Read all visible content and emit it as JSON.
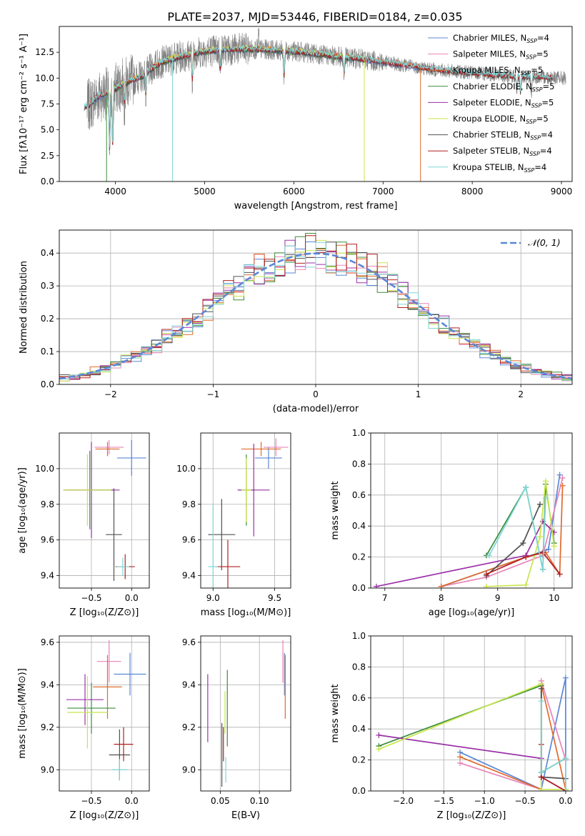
{
  "figure": {
    "title": "PLATE=2037, MJD=53446, FIBERID=0184, z=0.035"
  },
  "colors": {
    "Chabrier MILES": "#5b87d6",
    "Salpeter MILES": "#e784b7",
    "Kroupa MILES": "#e06a2c",
    "Chabrier ELODIE": "#3c8c3c",
    "Salpeter ELODIE": "#9b31a8",
    "Kroupa ELODIE": "#c8e64a",
    "Chabrier STELIB": "#505050",
    "Salpeter STELIB": "#b02020",
    "Kroupa STELIB": "#7fd6d6",
    "data": "#808080",
    "gauss": "#5b87d6",
    "grid": "#b0b0b0"
  },
  "chart_data": [
    {
      "id": "spectrum",
      "type": "line",
      "title": "PLATE=2037, MJD=53446, FIBERID=0184, z=0.035",
      "xlabel": "wavelength [Angstrom, rest frame]",
      "ylabel": "Flux [fλ10⁻¹⁷ erg cm⁻² s⁻¹ A⁻¹]",
      "xlim": [
        3370,
        9120
      ],
      "ylim": [
        0,
        15
      ],
      "xticks": [
        "4000",
        "5000",
        "6000",
        "7000",
        "8000",
        "9000"
      ],
      "yticks": [
        "0.0",
        "2.5",
        "5.0",
        "7.5",
        "10.0",
        "12.5"
      ],
      "grid": false,
      "legend_position": "top-right",
      "legend": [
        {
          "base": "Chabrier MILES, N",
          "sub": "SSP",
          "tail": "=4"
        },
        {
          "base": "Salpeter MILES, N",
          "sub": "SSP",
          "tail": "=5"
        },
        {
          "base": "Kroupa MILES, N",
          "sub": "SSP",
          "tail": "=5"
        },
        {
          "base": "Chabrier ELODIE, N",
          "sub": "SSP",
          "tail": "=5"
        },
        {
          "base": "Salpeter ELODIE, N",
          "sub": "SSP",
          "tail": "=5"
        },
        {
          "base": "Kroupa ELODIE, N",
          "sub": "SSP",
          "tail": "=5"
        },
        {
          "base": "Chabrier STELIB, N",
          "sub": "SSP",
          "tail": "=4"
        },
        {
          "base": "Salpeter STELIB, N",
          "sub": "SSP",
          "tail": "=4"
        },
        {
          "base": "Kroupa STELIB, N",
          "sub": "SSP",
          "tail": "=4"
        }
      ],
      "continuum": [
        [
          3680,
          7.2
        ],
        [
          3800,
          8.2
        ],
        [
          3950,
          8.7
        ],
        [
          4100,
          9.5
        ],
        [
          4300,
          10.2
        ],
        [
          4500,
          11.5
        ],
        [
          4700,
          12.0
        ],
        [
          5000,
          12.6
        ],
        [
          5300,
          12.8
        ],
        [
          5600,
          12.8
        ],
        [
          6000,
          12.6
        ],
        [
          6400,
          12.2
        ],
        [
          6800,
          11.8
        ],
        [
          7200,
          11.3
        ],
        [
          7600,
          10.8
        ],
        [
          8000,
          10.5
        ],
        [
          8400,
          10.2
        ],
        [
          8800,
          10.1
        ],
        [
          9050,
          10.0
        ]
      ],
      "data_range": [
        3680,
        9050
      ],
      "model_ranges": {
        "MILES": [
          3700,
          7420
        ],
        "ELODIE": [
          3900,
          6800
        ],
        "STELIB": [
          3650,
          8900
        ]
      }
    },
    {
      "id": "residuals",
      "type": "area",
      "xlabel": "(data-model)/error",
      "ylabel": "Normed distribution",
      "xlim": [
        -2.5,
        2.5
      ],
      "ylim": [
        0,
        0.47
      ],
      "xticks": [
        "-2",
        "-1",
        "0",
        "1",
        "2"
      ],
      "yticks": [
        "0.0",
        "0.1",
        "0.2",
        "0.3",
        "0.4"
      ],
      "grid": true,
      "legend_position": "top-right",
      "legend": "𝒩(0, 1)",
      "bin_width": 0.1,
      "distribution": "normal(0,1) step histograms, one per model"
    },
    {
      "id": "age-vs-Z",
      "type": "scatter",
      "xlabel": "Z [log₁₀(Z/Z⊙)]",
      "ylabel": "age  [log₁₀(age/yr)]",
      "xlim": [
        -0.9,
        0.22
      ],
      "ylim": [
        9.33,
        10.2
      ],
      "xticks": [
        "-0.5",
        "0.0"
      ],
      "yticks": [
        "9.4",
        "9.6",
        "9.8",
        "10.0"
      ],
      "grid": true,
      "points": [
        {
          "model": "Chabrier MILES",
          "x": 0.0,
          "xerr": 0.18,
          "y": 10.06,
          "yerr": 0.1
        },
        {
          "model": "Salpeter MILES",
          "x": -0.28,
          "xerr": 0.18,
          "y": 10.12,
          "yerr": 0.04
        },
        {
          "model": "Kroupa MILES",
          "x": -0.3,
          "xerr": 0.15,
          "y": 10.11,
          "yerr": 0.04
        },
        {
          "model": "Chabrier ELODIE",
          "x": -0.52,
          "xerr": 0.3,
          "y": 9.88,
          "yerr": 0.22
        },
        {
          "model": "Salpeter ELODIE",
          "x": -0.5,
          "xerr": 0.35,
          "y": 9.88,
          "yerr": 0.27
        },
        {
          "model": "Kroupa ELODIE",
          "x": -0.55,
          "xerr": 0.3,
          "y": 9.88,
          "yerr": 0.2
        },
        {
          "model": "Chabrier STELIB",
          "x": -0.22,
          "xerr": 0.1,
          "y": 9.63,
          "yerr": 0.26
        },
        {
          "model": "Salpeter STELIB",
          "x": -0.08,
          "xerr": 0.12,
          "y": 9.45,
          "yerr": 0.07
        },
        {
          "model": "Kroupa STELIB",
          "x": -0.11,
          "xerr": 0.08,
          "y": 9.45,
          "yerr": 0.05
        }
      ]
    },
    {
      "id": "age-vs-mass",
      "type": "scatter",
      "xlabel": "mass [log₁₀(M/M⊙)]",
      "ylabel": "",
      "xlim": [
        8.9,
        9.63
      ],
      "ylim": [
        9.33,
        10.2
      ],
      "xticks": [
        "9.0",
        "9.5"
      ],
      "yticks": [
        "9.4",
        "9.6",
        "9.8",
        "10.0"
      ],
      "grid": true,
      "points": [
        {
          "model": "Chabrier MILES",
          "x": 9.45,
          "xerr": 0.11,
          "y": 10.06,
          "yerr": 0.06
        },
        {
          "model": "Salpeter MILES",
          "x": 9.51,
          "xerr": 0.1,
          "y": 10.12,
          "yerr": 0.05
        },
        {
          "model": "Kroupa MILES",
          "x": 9.39,
          "xerr": 0.16,
          "y": 10.11,
          "yerr": 0.04
        },
        {
          "model": "Chabrier ELODIE",
          "x": 9.27,
          "xerr": 0.07,
          "y": 9.88,
          "yerr": 0.2
        },
        {
          "model": "Salpeter ELODIE",
          "x": 9.33,
          "xerr": 0.13,
          "y": 9.88,
          "yerr": 0.26
        },
        {
          "model": "Kroupa ELODIE",
          "x": 9.27,
          "xerr": 0.04,
          "y": 9.88,
          "yerr": 0.18
        },
        {
          "model": "Chabrier STELIB",
          "x": 9.07,
          "xerr": 0.11,
          "y": 9.63,
          "yerr": 0.2
        },
        {
          "model": "Salpeter STELIB",
          "x": 9.12,
          "xerr": 0.1,
          "y": 9.45,
          "yerr": 0.15
        },
        {
          "model": "Kroupa STELIB",
          "x": 9.0,
          "xerr": 0.04,
          "y": 9.45,
          "yerr": 0.35
        }
      ]
    },
    {
      "id": "weight-vs-age",
      "type": "line",
      "xlabel": "age  [log₁₀(age/yr)]",
      "ylabel": "mass weight",
      "xlim": [
        6.75,
        10.32
      ],
      "ylim": [
        0,
        1.0
      ],
      "xticks": [
        "7",
        "8",
        "9",
        "10"
      ],
      "yticks": [
        "0.0",
        "0.2",
        "0.4",
        "0.6",
        "0.8",
        "1.0"
      ],
      "grid": true,
      "series": [
        {
          "model": "Chabrier MILES",
          "x": [
            8.0,
            9.9,
            10.1
          ],
          "y": [
            0.01,
            0.25,
            0.73
          ]
        },
        {
          "model": "Salpeter MILES",
          "x": [
            8.0,
            8.8,
            9.8,
            10.15
          ],
          "y": [
            0.01,
            0.07,
            0.21,
            0.71
          ]
        },
        {
          "model": "Kroupa MILES",
          "x": [
            8.0,
            9.5,
            9.85,
            10.1,
            10.15
          ],
          "y": [
            0.01,
            0.2,
            0.23,
            0.09,
            0.66
          ]
        },
        {
          "model": "Chabrier ELODIE",
          "x": [
            8.8,
            9.5,
            9.8,
            9.85,
            10.0
          ],
          "y": [
            0.21,
            0.65,
            0.12,
            0.67,
            0.29
          ]
        },
        {
          "model": "Salpeter ELODIE",
          "x": [
            6.85,
            9.5,
            9.8,
            10.0
          ],
          "y": [
            0.01,
            0.21,
            0.43,
            0.36
          ]
        },
        {
          "model": "Kroupa ELODIE",
          "x": [
            8.8,
            9.5,
            9.75,
            9.85,
            10.0
          ],
          "y": [
            0.01,
            0.02,
            0.33,
            0.69,
            0.27
          ]
        },
        {
          "model": "Chabrier STELIB",
          "x": [
            8.8,
            9.45,
            9.75
          ],
          "y": [
            0.08,
            0.29,
            0.54
          ]
        },
        {
          "model": "Salpeter STELIB",
          "x": [
            8.8,
            9.5,
            9.8,
            10.1
          ],
          "y": [
            0.09,
            0.2,
            0.23,
            0.09
          ]
        },
        {
          "model": "Kroupa STELIB",
          "x": [
            8.85,
            9.5,
            9.8,
            9.85
          ],
          "y": [
            0.21,
            0.65,
            0.12,
            0.58
          ]
        }
      ]
    },
    {
      "id": "mass-vs-Z",
      "type": "scatter",
      "xlabel": "Z [log₁₀(Z/Z⊙)]",
      "ylabel": "mass [log₁₀(M/M⊙)]",
      "xlim": [
        -0.9,
        0.22
      ],
      "ylim": [
        8.9,
        9.63
      ],
      "xticks": [
        "-0.5",
        "0.0"
      ],
      "yticks": [
        "9.0",
        "9.2",
        "9.4",
        "9.6"
      ],
      "grid": true,
      "points": [
        {
          "model": "Chabrier MILES",
          "x": -0.02,
          "xerr": 0.2,
          "y": 9.45,
          "yerr": 0.1
        },
        {
          "model": "Salpeter MILES",
          "x": -0.28,
          "xerr": 0.15,
          "y": 9.51,
          "yerr": 0.1
        },
        {
          "model": "Kroupa MILES",
          "x": -0.3,
          "xerr": 0.18,
          "y": 9.39,
          "yerr": 0.15
        },
        {
          "model": "Chabrier ELODIE",
          "x": -0.5,
          "xerr": 0.3,
          "y": 9.29,
          "yerr": 0.12
        },
        {
          "model": "Salpeter ELODIE",
          "x": -0.58,
          "xerr": 0.23,
          "y": 9.33,
          "yerr": 0.12
        },
        {
          "model": "Kroupa ELODIE",
          "x": -0.55,
          "xerr": 0.25,
          "y": 9.27,
          "yerr": 0.17
        },
        {
          "model": "Chabrier STELIB",
          "x": -0.15,
          "xerr": 0.13,
          "y": 9.07,
          "yerr": 0.12
        },
        {
          "model": "Salpeter STELIB",
          "x": -0.1,
          "xerr": 0.12,
          "y": 9.12,
          "yerr": 0.08
        },
        {
          "model": "Kroupa STELIB",
          "x": -0.15,
          "xerr": 0.1,
          "y": 9.0,
          "yerr": 0.05
        }
      ]
    },
    {
      "id": "mass-vs-EBV",
      "type": "scatter",
      "xlabel": "E(B-V)",
      "ylabel": "",
      "xlim": [
        0.025,
        0.14
      ],
      "ylim": [
        8.9,
        9.63
      ],
      "xticks": [
        "0.05",
        "0.10"
      ],
      "yticks": [
        "9.0",
        "9.2",
        "9.4",
        "9.6"
      ],
      "grid": true,
      "points": [
        {
          "model": "Chabrier MILES",
          "x": 0.132,
          "xerr": 0.0,
          "y": 9.45,
          "yerr": 0.1
        },
        {
          "model": "Salpeter MILES",
          "x": 0.13,
          "xerr": 0.0,
          "y": 9.51,
          "yerr": 0.1
        },
        {
          "model": "Kroupa MILES",
          "x": 0.133,
          "xerr": 0.0,
          "y": 9.39,
          "yerr": 0.15
        },
        {
          "model": "Chabrier ELODIE",
          "x": 0.059,
          "xerr": 0.0,
          "y": 9.29,
          "yerr": 0.18
        },
        {
          "model": "Salpeter ELODIE",
          "x": 0.034,
          "xerr": 0.0,
          "y": 9.29,
          "yerr": 0.16
        },
        {
          "model": "Kroupa ELODIE",
          "x": 0.056,
          "xerr": 0.0,
          "y": 9.27,
          "yerr": 0.1
        },
        {
          "model": "Chabrier STELIB",
          "x": 0.052,
          "xerr": 0.0,
          "y": 9.07,
          "yerr": 0.15
        },
        {
          "model": "Salpeter STELIB",
          "x": 0.054,
          "xerr": 0.0,
          "y": 9.12,
          "yerr": 0.08
        },
        {
          "model": "Kroupa STELIB",
          "x": 0.057,
          "xerr": 0.0,
          "y": 9.0,
          "yerr": 0.06
        }
      ]
    },
    {
      "id": "weight-vs-Z",
      "type": "line",
      "xlabel": "Z [log₁₀(Z/Z⊙)]",
      "ylabel": "mass weight",
      "xlim": [
        -2.4,
        0.08
      ],
      "ylim": [
        0,
        1.0
      ],
      "xticks": [
        "-2.0",
        "-1.5",
        "-1.0",
        "-0.5",
        "0.0"
      ],
      "yticks": [
        "0.0",
        "0.2",
        "0.4",
        "0.6",
        "0.8",
        "1.0"
      ],
      "grid": true,
      "series": [
        {
          "model": "Chabrier MILES",
          "x": [
            -1.3,
            -0.3,
            0.0,
            0.0
          ],
          "y": [
            0.25,
            0.01,
            0.73,
            0.01
          ]
        },
        {
          "model": "Salpeter MILES",
          "x": [
            -1.3,
            -0.3,
            -0.3,
            0.0
          ],
          "y": [
            0.18,
            0.01,
            0.71,
            0.2
          ]
        },
        {
          "model": "Kroupa MILES",
          "x": [
            -1.3,
            -0.3,
            -0.3,
            0.0
          ],
          "y": [
            0.22,
            0.01,
            0.69,
            0.01
          ]
        },
        {
          "model": "Chabrier ELODIE",
          "x": [
            -2.3,
            -0.3,
            -0.3,
            0.0
          ],
          "y": [
            0.29,
            0.68,
            0.12,
            0.21
          ]
        },
        {
          "model": "Salpeter ELODIE",
          "x": [
            -2.3,
            -0.3,
            -0.3,
            0.0
          ],
          "y": [
            0.36,
            0.21,
            0.09,
            0.0
          ]
        },
        {
          "model": "Kroupa ELODIE",
          "x": [
            -2.3,
            -0.3,
            -0.3,
            0.0
          ],
          "y": [
            0.27,
            0.69,
            0.01,
            0.01
          ]
        },
        {
          "model": "Chabrier STELIB",
          "x": [
            -0.3,
            -0.3,
            0.0
          ],
          "y": [
            0.66,
            0.09,
            0.08
          ]
        },
        {
          "model": "Salpeter STELIB",
          "x": [
            -0.3,
            -0.3,
            0.0
          ],
          "y": [
            0.3,
            0.09,
            0.0
          ]
        },
        {
          "model": "Kroupa STELIB",
          "x": [
            -0.3,
            -0.3,
            0.0,
            0.0
          ],
          "y": [
            0.58,
            0.12,
            0.21,
            0.0
          ]
        }
      ]
    }
  ]
}
